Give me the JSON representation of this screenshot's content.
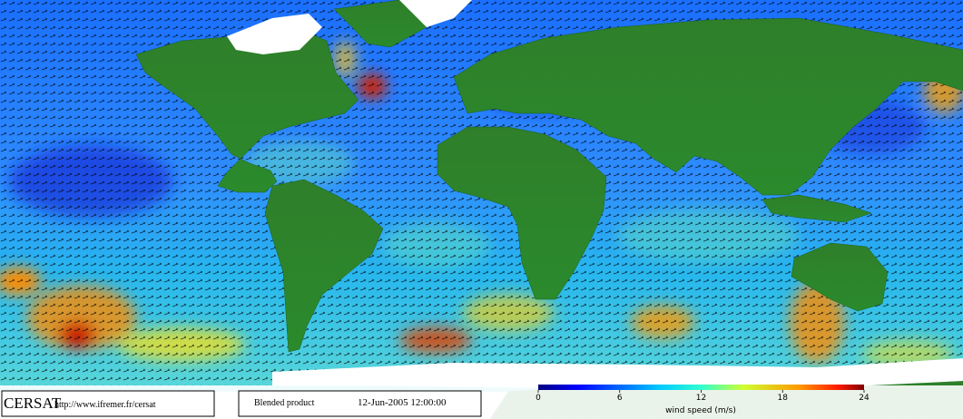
{
  "footer": {
    "logo": "CERSAT",
    "url": "http://www.ifremer.fr/cersat",
    "product": "Blended product",
    "date": "12-Jun-2005 12:00:00"
  },
  "colorbar": {
    "lim": [
      0,
      24
    ],
    "ticks": [
      0,
      6,
      12,
      18,
      24
    ],
    "label": "wind speed (m/s)"
  }
}
